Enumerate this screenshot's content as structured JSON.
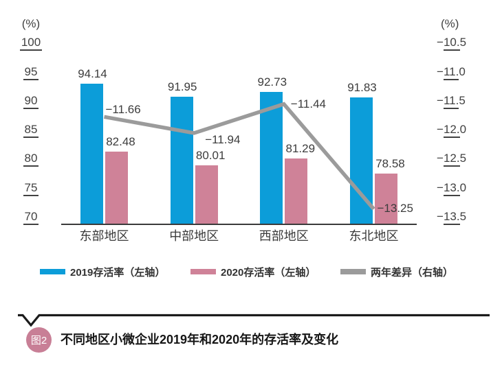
{
  "figure": {
    "caption_badge": "图2",
    "caption": "不同地区小微企业2019年和2020年的存活率及变化",
    "badge_color": "#c87f96"
  },
  "chart_data": {
    "type": "combo-bar-line",
    "categories": [
      "东部地区",
      "中部地区",
      "西部地区",
      "东北地区"
    ],
    "series": [
      {
        "name": "2019存活率（左轴）",
        "type": "bar",
        "axis": "left",
        "color": "#0c9dd9",
        "values": [
          94.14,
          91.95,
          92.73,
          91.83
        ]
      },
      {
        "name": "2020存活率（左轴）",
        "type": "bar",
        "axis": "left",
        "color": "#cf8298",
        "values": [
          82.48,
          80.01,
          81.29,
          78.58
        ]
      },
      {
        "name": "两年差异（右轴）",
        "type": "line",
        "axis": "right",
        "color": "#9b9b9b",
        "values": [
          -11.66,
          -11.94,
          -11.44,
          -13.25
        ]
      }
    ],
    "left_axis": {
      "unit": "(%)",
      "ticks": [
        100,
        95,
        90,
        85,
        80,
        75,
        70
      ],
      "min": 70,
      "max": 100
    },
    "right_axis": {
      "unit": "(%)",
      "ticks": [
        -10.5,
        -11,
        -11.5,
        -12,
        -12.5,
        -13,
        -13.5
      ],
      "min": -13.5,
      "max": -10.5
    },
    "grid": false,
    "legend_position": "bottom"
  }
}
